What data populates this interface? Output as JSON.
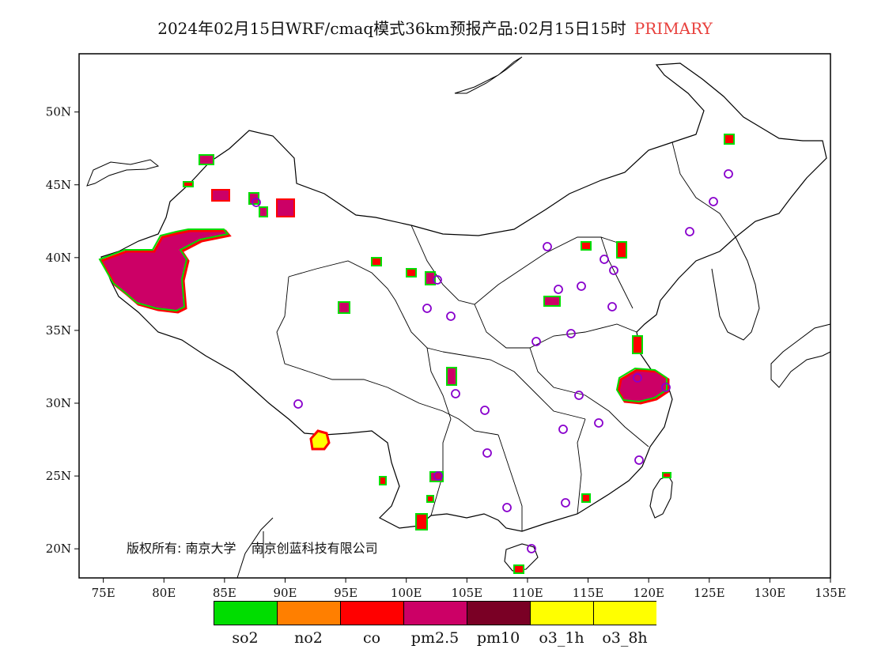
{
  "title": {
    "text": "2024年02月15日WRF/cmaq模式36km预报产品:02月15日15时",
    "highlight": "PRIMARY",
    "highlight_color": "#e8403c"
  },
  "credit": {
    "owner": "版权所有: 南京大学",
    "company": "南京创蓝科技有限公司"
  },
  "axes": {
    "x_ticks": [
      "75E",
      "80E",
      "85E",
      "90E",
      "95E",
      "100E",
      "105E",
      "110E",
      "115E",
      "120E",
      "125E",
      "130E",
      "135E"
    ],
    "y_ticks": [
      "50N",
      "45N",
      "40N",
      "35N",
      "30N",
      "25N",
      "20N"
    ],
    "lon_range": [
      73,
      135
    ],
    "lat_range": [
      18,
      54
    ]
  },
  "legend": [
    {
      "label": "so2",
      "color": "#00dd00"
    },
    {
      "label": "no2",
      "color": "#ff7f00"
    },
    {
      "label": "co",
      "color": "#ff0000"
    },
    {
      "label": "pm2.5",
      "color": "#cc0066"
    },
    {
      "label": "pm10",
      "color": "#7a0025"
    },
    {
      "label": "o3_1h",
      "color": "#ffff00"
    },
    {
      "label": "o3_8h",
      "color": "#ffff00"
    }
  ],
  "colors": {
    "circle": "#8800cc",
    "outline": "#000000"
  },
  "icons": {
    "station": "circle-marker-icon"
  }
}
